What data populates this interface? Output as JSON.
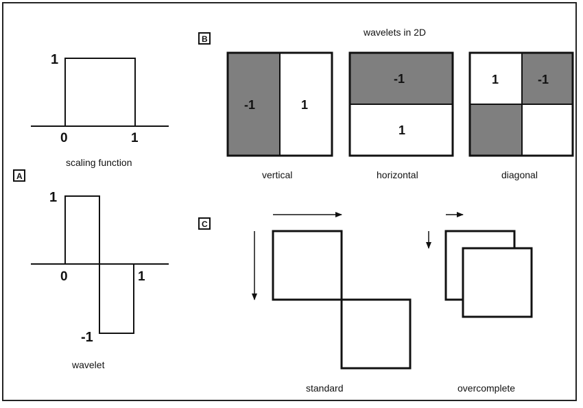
{
  "panels": {
    "A": "A",
    "B": "B",
    "C": "C"
  },
  "scaling": {
    "level_label": "1",
    "x0": "0",
    "x1": "1",
    "caption": "scaling function"
  },
  "wavelet": {
    "top_label": "1",
    "bottom_label": "-1",
    "x0": "0",
    "x1": "1",
    "caption": "wavelet"
  },
  "wavelets2d": {
    "title": "wavelets in 2D",
    "vertical": {
      "left": "-1",
      "right": "1",
      "caption": "vertical"
    },
    "horizontal": {
      "top": "-1",
      "bottom": "1",
      "caption": "horizontal"
    },
    "diagonal": {
      "top_left": "1",
      "top_right": "-1",
      "caption": "diagonal"
    }
  },
  "tiling": {
    "standard_caption": "standard",
    "overcomplete_caption": "overcomplete"
  },
  "colors": {
    "shade": "#7f7f7f",
    "line": "#111111",
    "background": "#ffffff"
  }
}
